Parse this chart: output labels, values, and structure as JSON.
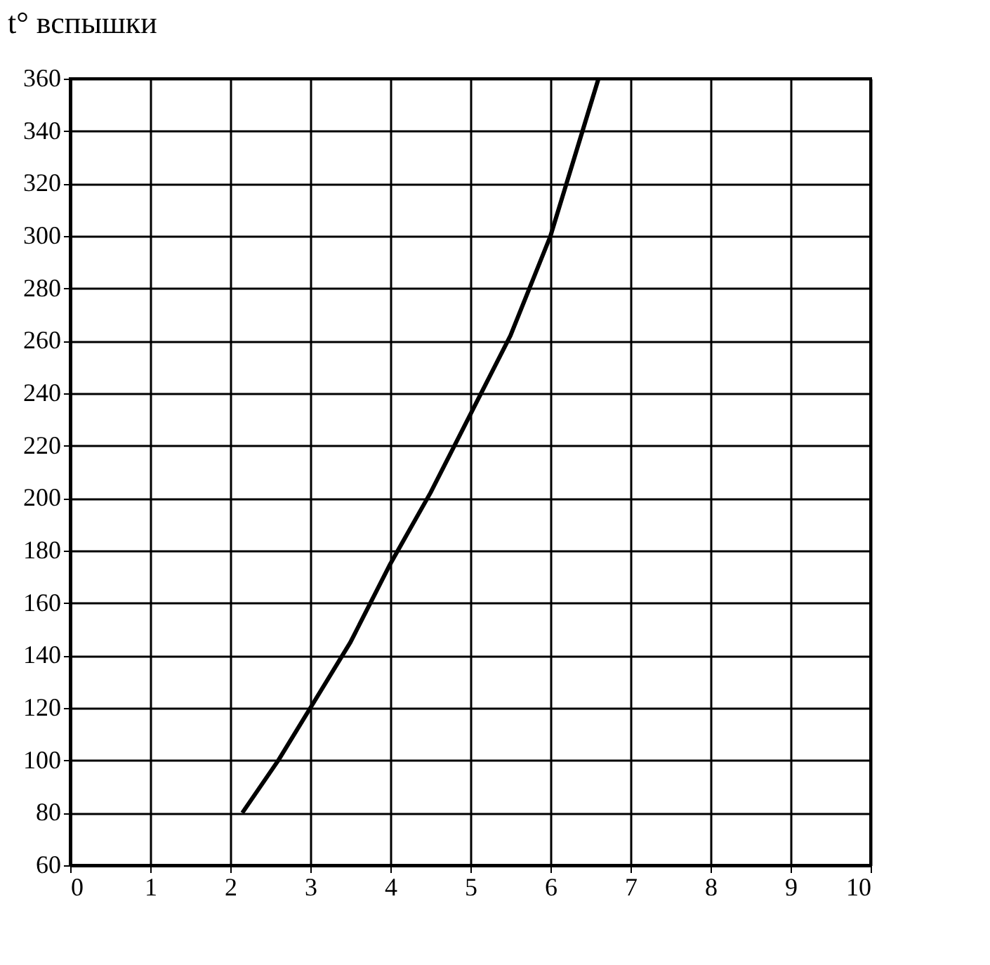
{
  "chart_data": {
    "type": "line",
    "ylabel": "t° вспышки",
    "x": [
      2.15,
      2.6,
      3.0,
      3.5,
      4.0,
      4.5,
      5.0,
      5.5,
      6.0,
      6.3,
      6.6
    ],
    "series": [
      {
        "color": "#000000",
        "values": [
          80,
          100,
          120,
          145,
          175,
          202,
          232,
          262,
          300,
          330,
          360
        ]
      }
    ],
    "xlim": [
      0,
      10
    ],
    "xticks": [
      0,
      1,
      2,
      3,
      4,
      5,
      6,
      7,
      8,
      9,
      10
    ],
    "ylim": [
      60,
      360
    ],
    "yticks": [
      60,
      80,
      100,
      120,
      140,
      160,
      180,
      200,
      220,
      240,
      260,
      280,
      300,
      320,
      340,
      360
    ],
    "grid": true,
    "marker": "none",
    "line_style": "solid"
  }
}
